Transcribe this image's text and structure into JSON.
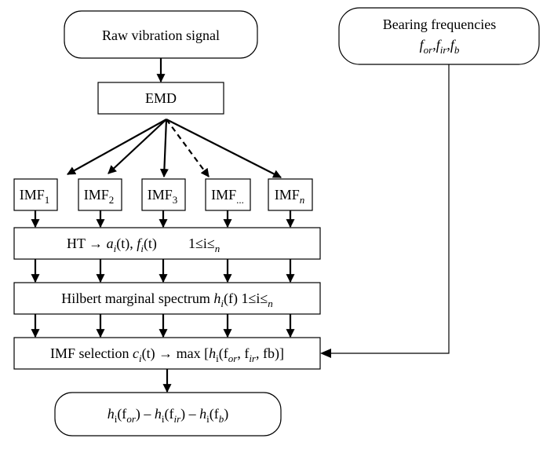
{
  "raw": "Raw vibration signal",
  "bearing_title": "Bearing frequencies",
  "bearing_formula": [
    "f",
    "or",
    ",",
    "f",
    "ir",
    ",",
    "f",
    "b"
  ],
  "emd": "EMD",
  "imfs": [
    [
      "IMF",
      "1"
    ],
    [
      "IMF",
      "2"
    ],
    [
      "IMF",
      "3"
    ],
    [
      "IMF",
      "..."
    ],
    [
      "IMF",
      "n"
    ]
  ],
  "ht": [
    "HT ",
    "→",
    " a",
    "i",
    "(t), ",
    "f",
    "i",
    "(t)",
    "1≤i≤",
    "n"
  ],
  "hilbert": [
    "Hilbert marginal spectrum ",
    "h",
    "i",
    "(f)",
    " 1≤i≤",
    "n"
  ],
  "selection": [
    "IMF selection ",
    "c",
    "i",
    "(t) → max [",
    "h",
    "i",
    "(f",
    "or",
    ", f",
    "ir",
    ", f",
    "b",
    ")]"
  ],
  "output": [
    "h",
    "i",
    "(f",
    "or",
    ") – ",
    "h",
    "i",
    "(f",
    "ir",
    ") – ",
    "h",
    "i",
    "(f",
    "b",
    ")"
  ]
}
